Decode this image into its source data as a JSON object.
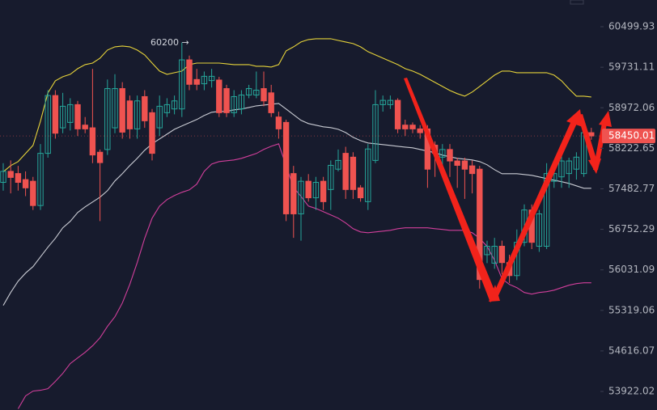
{
  "chart_data": {
    "type": "candlestick",
    "annotation": "60200 →",
    "log": true,
    "ylim": [
      53607,
      61012
    ],
    "yticks": [
      60499.93,
      59731.11,
      58972.06,
      58222.65,
      57482.77,
      56752.29,
      56031.09,
      55319.06,
      54616.07,
      53922.02
    ],
    "up_color": "#26a69a",
    "down_color": "#ef5350",
    "open": [
      57600,
      57800,
      57760,
      57650,
      57620,
      57180,
      58130,
      59200,
      58600,
      58700,
      59030,
      58650,
      58600,
      58150,
      58200,
      58600,
      59330,
      59100,
      58580,
      59180,
      58880,
      58600,
      58880,
      58950,
      58950,
      59870,
      59500,
      59420,
      59480,
      59490,
      59330,
      58880,
      58950,
      59210,
      59210,
      59330,
      59250,
      58800,
      58700,
      57760,
      57030,
      57620,
      57320,
      57620,
      57470,
      57840,
      58130,
      58060,
      57500,
      57250,
      58000,
      59030,
      59030,
      59110,
      58650,
      58650,
      58580,
      58580,
      58280,
      58060,
      58200,
      57990,
      57990,
      57900,
      57840,
      56300,
      56150,
      56450,
      56160,
      55930,
      56520,
      57100,
      56450,
      56450,
      57620,
      57700,
      57760,
      57840,
      57760,
      58510
    ],
    "high": [
      57950,
      58000,
      57900,
      57800,
      57700,
      58300,
      59300,
      59300,
      59250,
      59150,
      59100,
      58800,
      59700,
      58200,
      59500,
      59600,
      59450,
      59200,
      59200,
      59300,
      58950,
      59200,
      59150,
      59200,
      60200,
      59950,
      59700,
      59650,
      59700,
      59550,
      59400,
      59300,
      59300,
      59400,
      59650,
      59650,
      59400,
      58900,
      58750,
      57900,
      57700,
      57750,
      57700,
      57700,
      58000,
      58200,
      58250,
      58150,
      57550,
      58300,
      59300,
      59200,
      59200,
      59150,
      58750,
      58700,
      58650,
      58650,
      58350,
      58300,
      58300,
      58050,
      58050,
      58000,
      57900,
      56550,
      56600,
      56550,
      56300,
      56750,
      57200,
      57200,
      57100,
      57950,
      57900,
      58100,
      58050,
      58150,
      58600,
      58600
    ],
    "low": [
      57450,
      57400,
      57450,
      57350,
      57100,
      57100,
      58050,
      58400,
      58500,
      58550,
      58450,
      58500,
      57950,
      56900,
      58100,
      58500,
      58400,
      58400,
      58400,
      58600,
      58000,
      58450,
      58800,
      58850,
      58800,
      59300,
      59300,
      59300,
      59350,
      58800,
      58800,
      58800,
      58850,
      59150,
      59150,
      59000,
      58800,
      58400,
      56900,
      56600,
      56550,
      57250,
      57100,
      57100,
      57100,
      57800,
      57300,
      57300,
      57250,
      57100,
      57950,
      58900,
      58950,
      58500,
      58450,
      58500,
      58400,
      57500,
      57700,
      57800,
      57700,
      57500,
      57300,
      57400,
      55700,
      56150,
      56050,
      55950,
      55800,
      55850,
      56450,
      56400,
      56350,
      56400,
      57500,
      57500,
      57500,
      57650,
      57700,
      58380
    ],
    "close": [
      57800,
      57690,
      57600,
      57500,
      57180,
      58130,
      59200,
      58500,
      59000,
      59030,
      58580,
      58580,
      58100,
      57960,
      59330,
      59330,
      58520,
      58580,
      59100,
      58730,
      58130,
      59000,
      59030,
      59100,
      59870,
      59410,
      59410,
      59560,
      59560,
      58880,
      58880,
      59180,
      59210,
      59330,
      59300,
      59100,
      58880,
      58580,
      57030,
      57030,
      57620,
      57320,
      57600,
      57250,
      57910,
      58000,
      57470,
      57470,
      57320,
      58210,
      59030,
      59110,
      59110,
      58580,
      58580,
      58580,
      58510,
      57840,
      58130,
      58200,
      57990,
      57910,
      57840,
      57760,
      55860,
      56450,
      56450,
      56160,
      55930,
      56520,
      57100,
      56520,
      57030,
      57760,
      57760,
      57990,
      57990,
      58060,
      58510,
      58450.01
    ],
    "bands": [
      {
        "color": "#e6d33a",
        "values": [
          57793,
          57905,
          57979,
          58127,
          58275,
          58723,
          59250,
          59476,
          59552,
          59598,
          59704,
          59780,
          59810,
          59903,
          60055,
          60117,
          60132,
          60117,
          60055,
          59964,
          59810,
          59658,
          59598,
          59628,
          59658,
          59780,
          59810,
          59810,
          59810,
          59810,
          59795,
          59780,
          59780,
          59780,
          59750,
          59750,
          59734,
          59780,
          60040,
          60117,
          60209,
          60255,
          60270,
          60270,
          60270,
          60239,
          60209,
          60178,
          60117,
          60025,
          59964,
          59903,
          59841,
          59780,
          59704,
          59658,
          59598,
          59522,
          59446,
          59370,
          59295,
          59235,
          59189,
          59265,
          59370,
          59476,
          59583,
          59658,
          59658,
          59628,
          59628,
          59628,
          59628,
          59628,
          59583,
          59476,
          59325,
          59189,
          59189,
          59174
        ]
      },
      {
        "color": "#c9cbd3",
        "values": [
          55405,
          55632,
          55832,
          55974,
          56088,
          56260,
          56433,
          56591,
          56779,
          56895,
          57054,
          57156,
          57244,
          57332,
          57449,
          57625,
          57757,
          57905,
          58038,
          58186,
          58305,
          58394,
          58483,
          58573,
          58633,
          58693,
          58753,
          58828,
          58888,
          58903,
          58903,
          58933,
          58948,
          58978,
          59008,
          59023,
          59038,
          59053,
          58948,
          58843,
          58738,
          58678,
          58648,
          58618,
          58603,
          58573,
          58513,
          58424,
          58364,
          58320,
          58305,
          58290,
          58275,
          58260,
          58245,
          58231,
          58201,
          58171,
          58142,
          58097,
          58068,
          58038,
          58023,
          58008,
          57979,
          57920,
          57831,
          57757,
          57757,
          57757,
          57743,
          57728,
          57699,
          57669,
          57640,
          57611,
          57581,
          57537,
          57493,
          57493
        ]
      },
      {
        "color": "#d13f9b",
        "values": [
          null,
          null,
          53627,
          53846,
          53928,
          53942,
          53969,
          54093,
          54231,
          54398,
          54495,
          54592,
          54704,
          54843,
          55040,
          55208,
          55448,
          55775,
          56160,
          56591,
          56953,
          57171,
          57288,
          57361,
          57420,
          57464,
          57567,
          57802,
          57935,
          57979,
          57994,
          58008,
          58038,
          58083,
          58127,
          58201,
          58260,
          58305,
          57905,
          57508,
          57346,
          57171,
          57127,
          57069,
          57011,
          56953,
          56866,
          56764,
          56706,
          56692,
          56706,
          56721,
          56735,
          56764,
          56779,
          56779,
          56779,
          56779,
          56764,
          56750,
          56735,
          56735,
          56735,
          56692,
          56591,
          56447,
          56203,
          55874,
          55775,
          55717,
          55632,
          55604,
          55632,
          55646,
          55674,
          55717,
          55760,
          55789,
          55803,
          55803
        ]
      }
    ]
  }
}
